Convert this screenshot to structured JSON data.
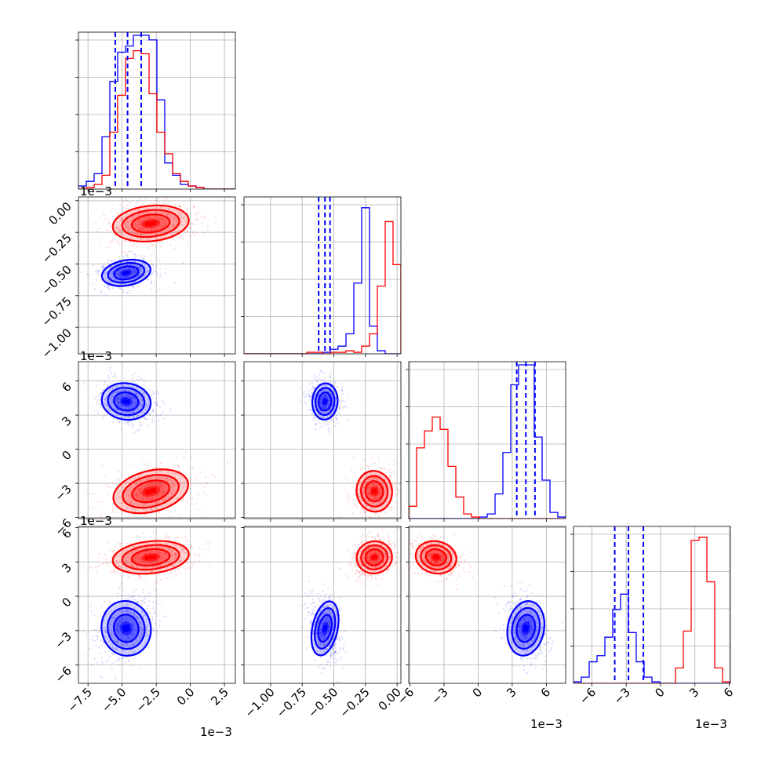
{
  "chart_data": {
    "type": "corner",
    "colors": {
      "blue": "#0000ff",
      "red": "#ff0000"
    },
    "grid": true,
    "params": [
      {
        "range": [
          -0.0082,
          0.0033
        ],
        "ticks": [
          -0.0075,
          -0.005,
          -0.0025,
          0,
          0.0025
        ],
        "tick_labels": [
          "−7.5",
          "−5.0",
          "−2.5",
          "0.0",
          "2.5"
        ],
        "offset": "1e−3"
      },
      {
        "range": [
          -0.00121,
          3e-05
        ],
        "ticks": [
          -0.001,
          -0.00075,
          -0.0005,
          -0.00025,
          0
        ],
        "tick_labels": [
          "−1.00",
          "−0.75",
          "−0.50",
          "−0.25",
          "0.00"
        ],
        "offset": "1e−3"
      },
      {
        "range": [
          -0.0061,
          0.0077
        ],
        "ticks": [
          -0.006,
          -0.003,
          0,
          0.003,
          0.006
        ],
        "tick_labels": [
          "−6",
          "−3",
          "0",
          "3",
          "6"
        ],
        "offset": "1e−3"
      },
      {
        "range": [
          -0.0076,
          0.0061
        ],
        "ticks": [
          -0.006,
          -0.003,
          0,
          0.003,
          0.006
        ],
        "tick_labels": [
          "−6",
          "−3",
          "0",
          "3",
          "6"
        ],
        "offset": "1e−3"
      }
    ],
    "series": [
      {
        "color": "#0000ff",
        "mean": [
          -0.0047,
          -0.00057,
          0.0042,
          -0.0028
        ],
        "std": [
          0.0009,
          5e-05,
          0.0008,
          0.0012
        ],
        "quantiles": [
          [
            -0.0055,
            -0.0046,
            -0.0036
          ],
          [
            -0.00062,
            -0.00057,
            -0.00053
          ],
          [
            0.0034,
            0.0042,
            0.005
          ],
          [
            -0.004,
            -0.0028,
            -0.0015
          ]
        ],
        "hist": [
          {
            "edges": [
              -0.0082,
              0.0033
            ],
            "counts": [
              0.02,
              0.05,
              0.1,
              0.34,
              0.7,
              0.89,
              0.93,
              1.0,
              1.0,
              0.97,
              0.58,
              0.17,
              0.09,
              0.03,
              0.02,
              0.01,
              0,
              0,
              0,
              0
            ]
          },
          {
            "edges": [
              -0.00121,
              3e-05
            ],
            "counts": [
              0,
              0,
              0,
              0,
              0,
              0,
              0,
              0,
              0,
              0,
              0.01,
              0.03,
              0.05,
              0.13,
              0.46,
              0.95,
              0.18,
              0.02,
              0,
              0
            ]
          },
          {
            "edges": [
              -0.0061,
              0.0077
            ],
            "counts": [
              0,
              0,
              0,
              0,
              0,
              0,
              0,
              0,
              0,
              0.01,
              0.03,
              0.16,
              0.43,
              0.87,
              1.0,
              1.0,
              0.53,
              0.25,
              0.04,
              0.01
            ]
          },
          {
            "edges": [
              -0.0076,
              0.0061
            ],
            "counts": [
              0.01,
              0.04,
              0.14,
              0.18,
              0.3,
              0.48,
              0.58,
              0.33,
              0.14,
              0.04,
              0.01,
              0,
              0,
              0,
              0,
              0,
              0,
              0,
              0,
              0
            ]
          }
        ]
      },
      {
        "color": "#ff0000",
        "mean": [
          -0.0029,
          -0.00018,
          -0.0037,
          0.0034
        ],
        "std": [
          0.0014,
          7e-05,
          0.0009,
          0.0007
        ],
        "hist": [
          {
            "edges": [
              -0.0082,
              0.0033
            ],
            "counts": [
              0,
              0.01,
              0.03,
              0.09,
              0.37,
              0.61,
              0.85,
              0.9,
              0.88,
              0.62,
              0.37,
              0.23,
              0.1,
              0.05,
              0.02,
              0.01,
              0,
              0,
              0,
              0
            ]
          },
          {
            "edges": [
              -0.00121,
              3e-05
            ],
            "counts": [
              0,
              0,
              0,
              0,
              0,
              0,
              0,
              0,
              0.01,
              0.01,
              0,
              0.01,
              0.01,
              0.02,
              0.01,
              0.05,
              0.13,
              0.44,
              0.86,
              0.58
            ]
          },
          {
            "edges": [
              -0.0061,
              0.0077
            ],
            "counts": [
              0.08,
              0.46,
              0.57,
              0.66,
              0.58,
              0.34,
              0.14,
              0.03,
              0.01,
              0,
              0,
              0,
              0,
              0,
              0,
              0,
              0,
              0,
              0,
              0
            ]
          },
          {
            "edges": [
              -0.0076,
              0.0061
            ],
            "counts": [
              0,
              0,
              0,
              0,
              0,
              0,
              0,
              0,
              0,
              0,
              0,
              0,
              0,
              0.1,
              0.34,
              0.93,
              0.95,
              0.66,
              0.1,
              0.01
            ]
          }
        ]
      }
    ]
  }
}
